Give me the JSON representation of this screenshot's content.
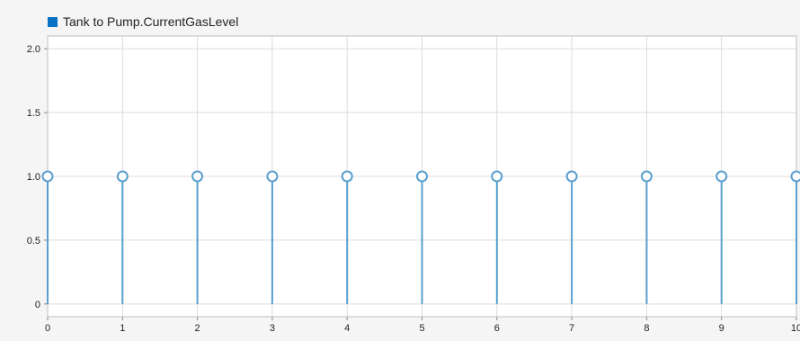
{
  "chart_data": {
    "type": "stem",
    "title": "",
    "xlabel": "",
    "ylabel": "",
    "xlim": [
      0,
      10
    ],
    "ylim": [
      -0.1,
      2.1
    ],
    "grid": true,
    "legend_position": "top-left",
    "x_ticks": [
      "0",
      "1",
      "2",
      "3",
      "4",
      "5",
      "6",
      "7",
      "8",
      "9",
      "10"
    ],
    "y_ticks": [
      "0",
      "0.5",
      "1.0",
      "1.5",
      "2.0"
    ],
    "series": [
      {
        "name": "Tank to Pump.CurrentGasLevel",
        "color": "#5a9fce",
        "x": [
          0,
          1,
          2,
          3,
          4,
          5,
          6,
          7,
          8,
          9,
          10
        ],
        "y": [
          1,
          1,
          1,
          1,
          1,
          1,
          1,
          1,
          1,
          1,
          1
        ]
      }
    ]
  },
  "legend": {
    "swatch_color": "#0a72c4"
  }
}
